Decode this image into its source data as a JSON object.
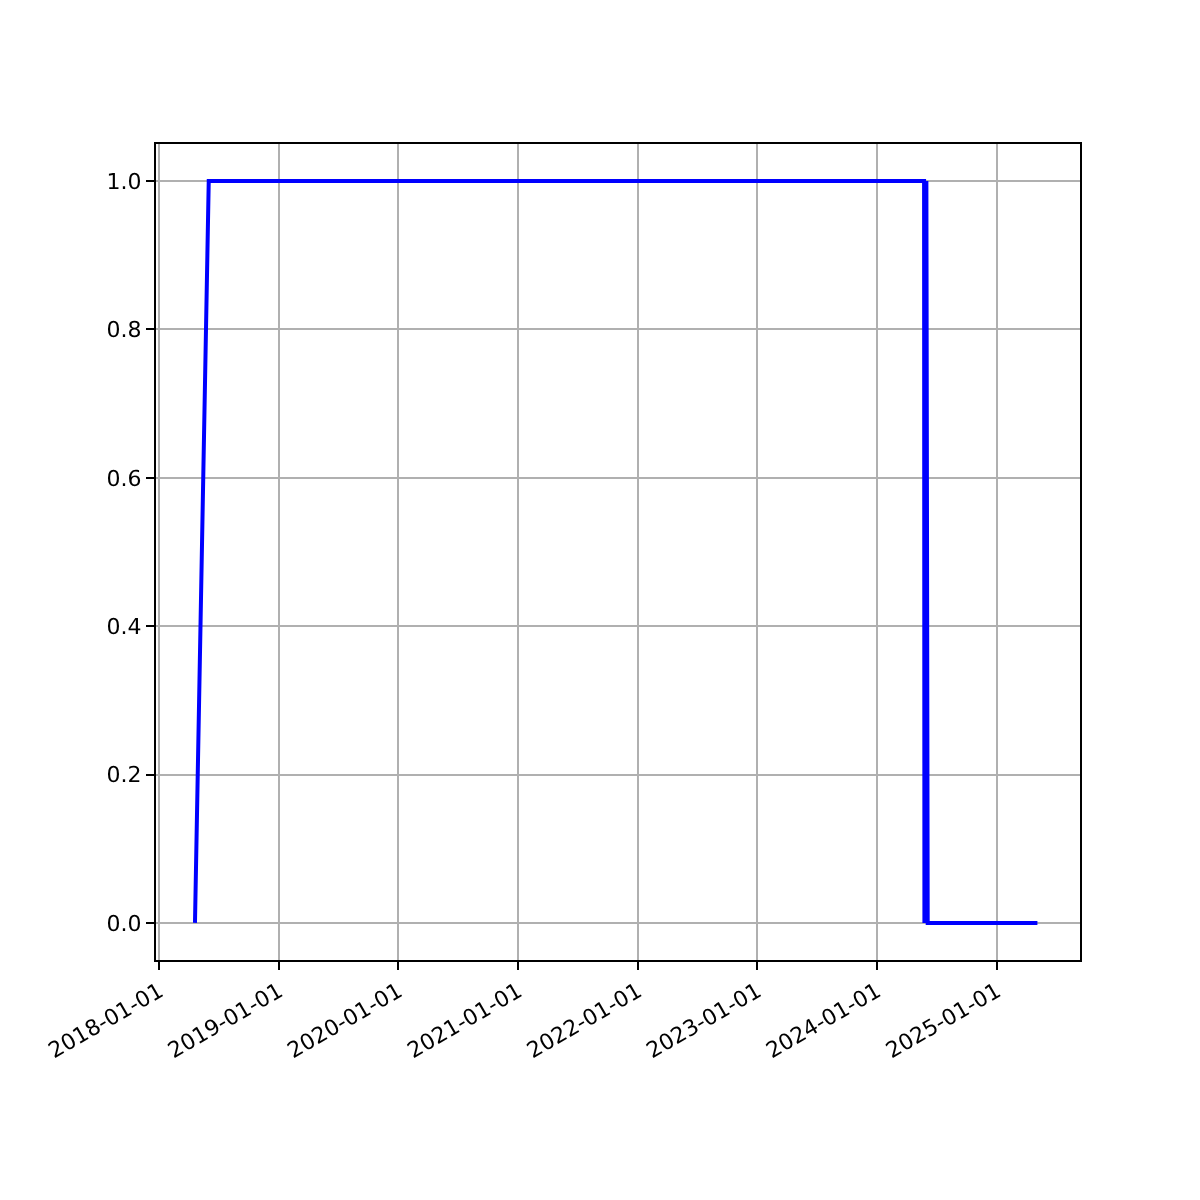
{
  "chart_data": {
    "type": "line",
    "x": [
      "2018-04-20",
      "2018-06-01",
      "2024-05-24",
      "2024-05-25",
      "2024-05-31",
      "2024-06-04",
      "2025-05-05"
    ],
    "series": [
      {
        "color": "#0000ff",
        "values": [
          0,
          1,
          1,
          0,
          1,
          0,
          0
        ]
      }
    ],
    "xlim": [
      "2017-12-22",
      "2025-09-12"
    ],
    "xticks": [
      "2018-01-01",
      "2019-01-01",
      "2020-01-01",
      "2021-01-01",
      "2022-01-01",
      "2023-01-01",
      "2024-01-01",
      "2025-01-01"
    ],
    "ylim": [
      -0.05,
      1.05
    ],
    "yticks": [
      {
        "value": 0,
        "label": "0.0"
      },
      {
        "value": 0.2,
        "label": "0.2"
      },
      {
        "value": 0.4,
        "label": "0.4"
      },
      {
        "value": 0.6,
        "label": "0.6"
      },
      {
        "value": 0.8,
        "label": "0.8"
      },
      {
        "value": 1,
        "label": "1.0"
      }
    ],
    "grid": true
  }
}
